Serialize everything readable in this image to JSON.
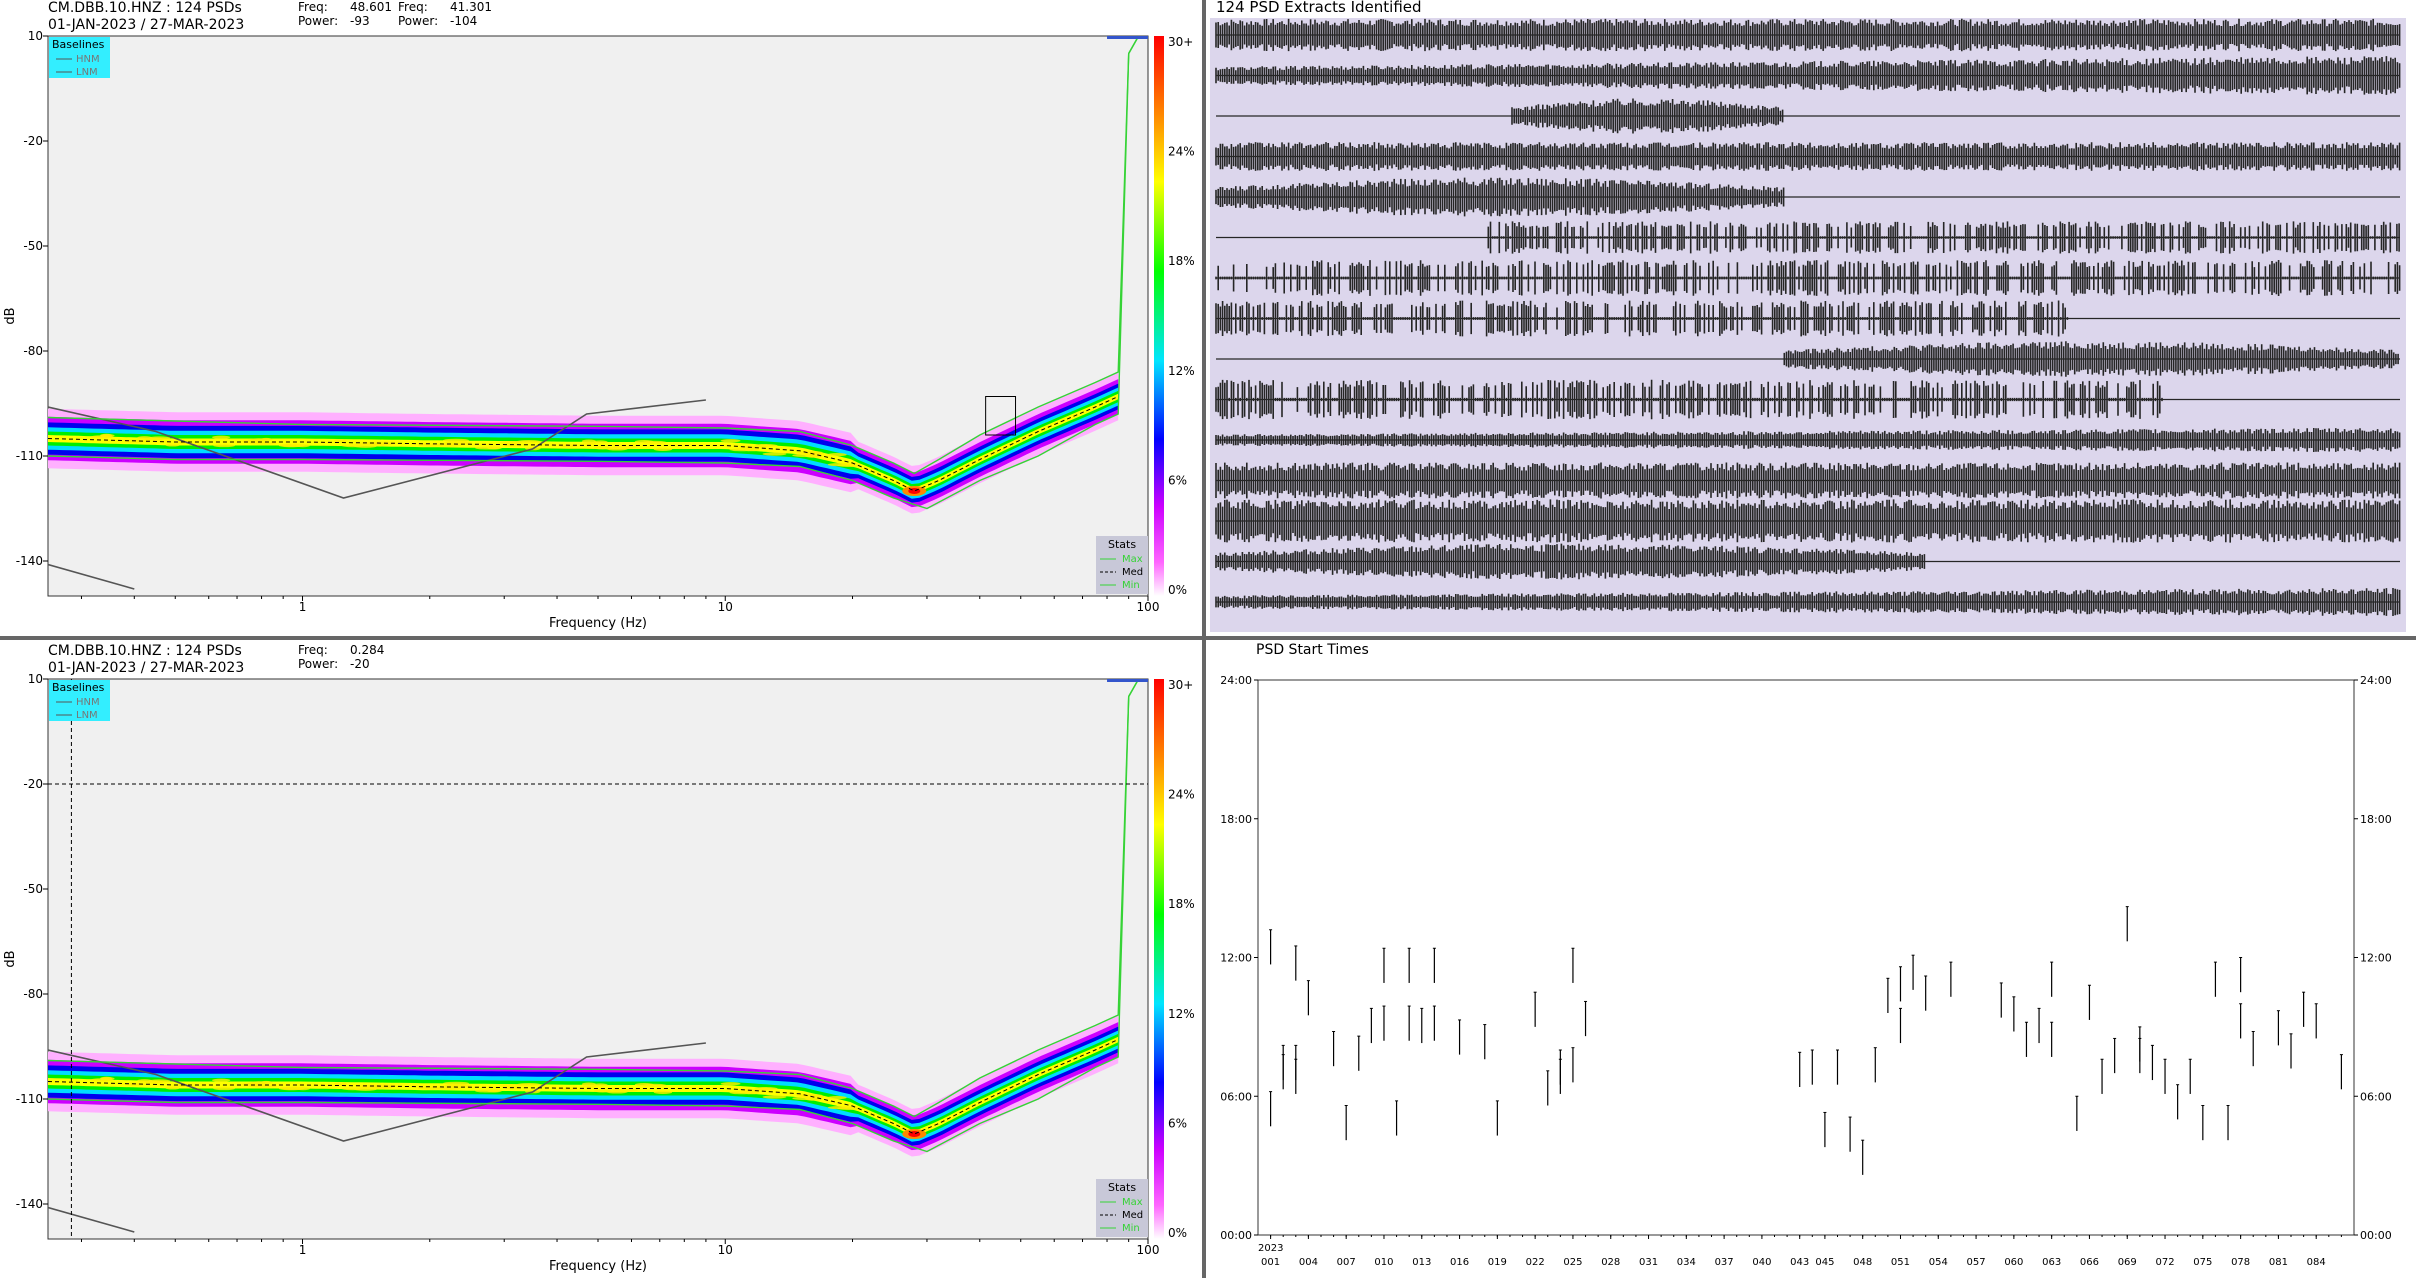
{
  "panels": {
    "top_left": {
      "title_line1": "CM.DBB.10.HNZ : 124 PSDs",
      "title_line2": "01-JAN-2023 / 27-MAR-2023",
      "readout": [
        {
          "freq_label": "Freq:",
          "freq_value": "48.601",
          "power_label": "Power:",
          "power_value": "-93"
        },
        {
          "freq_label": "Freq:",
          "freq_value": "41.301",
          "power_label": "Power:",
          "power_value": "-104"
        }
      ],
      "has_crosshair": false,
      "has_probe_box": true
    },
    "bottom_left": {
      "title_line1": "CM.DBB.10.HNZ : 124 PSDs",
      "title_line2": "01-JAN-2023 / 27-MAR-2023",
      "readout": [
        {
          "freq_label": "Freq:",
          "freq_value": "0.284",
          "power_label": "Power:",
          "power_value": "-20"
        }
      ],
      "has_crosshair": true,
      "crosshair": {
        "freq": 0.284,
        "power": -20
      },
      "has_probe_box": false
    },
    "waveforms": {
      "title": "124 PSD Extracts Identified",
      "traces": [
        {
          "start": 0.0,
          "end": 1.0,
          "amp": 0.45,
          "style": "noise"
        },
        {
          "start": 0.0,
          "end": 1.0,
          "amp": 0.55,
          "style": "noise-fade"
        },
        {
          "start": 0.25,
          "end": 0.48,
          "amp": 0.5,
          "style": "burst"
        },
        {
          "start": 0.0,
          "end": 1.0,
          "amp": 0.4,
          "style": "noise"
        },
        {
          "start": 0.0,
          "end": 0.48,
          "amp": 0.55,
          "style": "burst"
        },
        {
          "start": 0.23,
          "end": 1.0,
          "amp": 0.45,
          "style": "spiky"
        },
        {
          "start": 0.0,
          "end": 1.0,
          "amp": 0.5,
          "style": "spiky"
        },
        {
          "start": 0.0,
          "end": 0.72,
          "amp": 0.5,
          "style": "spiky"
        },
        {
          "start": 0.48,
          "end": 1.0,
          "amp": 0.5,
          "style": "burst"
        },
        {
          "start": 0.0,
          "end": 0.8,
          "amp": 0.55,
          "style": "spiky"
        },
        {
          "start": 0.0,
          "end": 1.0,
          "amp": 0.35,
          "style": "noise-fade"
        },
        {
          "start": 0.0,
          "end": 1.0,
          "amp": 0.5,
          "style": "noise"
        },
        {
          "start": 0.0,
          "end": 1.0,
          "amp": 0.6,
          "style": "noise"
        },
        {
          "start": 0.0,
          "end": 0.6,
          "amp": 0.5,
          "style": "burst"
        },
        {
          "start": 0.0,
          "end": 1.0,
          "amp": 0.4,
          "style": "noise-fade"
        }
      ]
    },
    "start_times": {
      "title": "PSD Start Times"
    }
  },
  "legends": {
    "baselines_title": "Baselines",
    "baselines": [
      "HNM",
      "LNM"
    ],
    "stats_title": "Stats",
    "stats": [
      "Max",
      "Med",
      "Min"
    ]
  },
  "chart_data": [
    {
      "type": "heatmap",
      "id": "psd_pdf_top",
      "xlabel": "Frequency (Hz)",
      "ylabel": "dB",
      "x_scale": "log",
      "xlim": [
        0.25,
        100
      ],
      "ylim": [
        -150,
        10
      ],
      "x_ticks": [
        1,
        10,
        100
      ],
      "x_tick_labels": [
        "1",
        "10",
        "100"
      ],
      "y_ticks": [
        10,
        -20,
        -50,
        -80,
        -110,
        -140
      ],
      "colorbar": {
        "ticks": [
          "30+",
          "24%",
          "18%",
          "12%",
          "6%",
          "0%"
        ],
        "range": [
          0,
          30
        ],
        "unit": "%"
      },
      "mode_curve": [
        [
          0.25,
          -105
        ],
        [
          0.5,
          -106
        ],
        [
          1,
          -106
        ],
        [
          2,
          -106.5
        ],
        [
          5,
          -107
        ],
        [
          10,
          -107
        ],
        [
          15,
          -108.5
        ],
        [
          20,
          -112
        ],
        [
          25,
          -117
        ],
        [
          28,
          -120
        ],
        [
          32,
          -117
        ],
        [
          40,
          -111
        ],
        [
          55,
          -103
        ],
        [
          75,
          -96
        ],
        [
          85,
          -93
        ]
      ],
      "max_curve": [
        [
          0.25,
          -99
        ],
        [
          0.5,
          -100
        ],
        [
          1,
          -101
        ],
        [
          5,
          -101.5
        ],
        [
          10,
          -102
        ],
        [
          15,
          -103
        ],
        [
          20,
          -107
        ],
        [
          25,
          -112
        ],
        [
          28,
          -115
        ],
        [
          32,
          -111
        ],
        [
          40,
          -104
        ],
        [
          55,
          -96
        ],
        [
          75,
          -89
        ],
        [
          85,
          -86
        ],
        [
          90,
          5
        ],
        [
          95,
          10
        ],
        [
          100,
          10
        ]
      ],
      "min_curve": [
        [
          0.25,
          -110
        ],
        [
          0.5,
          -111
        ],
        [
          1,
          -111
        ],
        [
          5,
          -111.5
        ],
        [
          10,
          -112
        ],
        [
          15,
          -113
        ],
        [
          20,
          -117
        ],
        [
          25,
          -122
        ],
        [
          30,
          -125
        ],
        [
          40,
          -117
        ],
        [
          55,
          -110
        ],
        [
          75,
          -101
        ],
        [
          85,
          -98
        ],
        [
          90,
          5
        ],
        [
          95,
          10
        ],
        [
          100,
          10
        ]
      ],
      "nhnm_curve": [
        [
          0.25,
          -96
        ],
        [
          0.45,
          -103
        ],
        [
          1.25,
          -122
        ],
        [
          3.5,
          -108
        ],
        [
          4.7,
          -98
        ],
        [
          9,
          -94
        ]
      ],
      "nlnm_curve": [
        [
          0.25,
          -141
        ],
        [
          0.4,
          -148
        ]
      ]
    },
    {
      "type": "heatmap",
      "id": "psd_pdf_bottom",
      "xlabel": "Frequency (Hz)",
      "ylabel": "dB",
      "x_scale": "log",
      "xlim": [
        0.25,
        100
      ],
      "ylim": [
        -150,
        10
      ],
      "x_ticks": [
        1,
        10,
        100
      ],
      "x_tick_labels": [
        "1",
        "10",
        "100"
      ],
      "y_ticks": [
        10,
        -20,
        -50,
        -80,
        -110,
        -140
      ],
      "colorbar": {
        "ticks": [
          "30+",
          "24%",
          "18%",
          "12%",
          "6%",
          "0%"
        ],
        "range": [
          0,
          30
        ],
        "unit": "%"
      },
      "mode_curve": [
        [
          0.25,
          -105
        ],
        [
          0.5,
          -106
        ],
        [
          1,
          -106
        ],
        [
          2,
          -106.5
        ],
        [
          5,
          -107
        ],
        [
          10,
          -107
        ],
        [
          15,
          -108.5
        ],
        [
          20,
          -112
        ],
        [
          25,
          -117
        ],
        [
          28,
          -120
        ],
        [
          32,
          -117
        ],
        [
          40,
          -111
        ],
        [
          55,
          -103
        ],
        [
          75,
          -96
        ],
        [
          85,
          -93
        ]
      ],
      "max_curve": [
        [
          0.25,
          -99
        ],
        [
          0.5,
          -100
        ],
        [
          1,
          -101
        ],
        [
          5,
          -101.5
        ],
        [
          10,
          -102
        ],
        [
          15,
          -103
        ],
        [
          20,
          -107
        ],
        [
          25,
          -112
        ],
        [
          28,
          -115
        ],
        [
          32,
          -111
        ],
        [
          40,
          -104
        ],
        [
          55,
          -96
        ],
        [
          75,
          -89
        ],
        [
          85,
          -86
        ],
        [
          90,
          5
        ],
        [
          95,
          10
        ],
        [
          100,
          10
        ]
      ],
      "min_curve": [
        [
          0.25,
          -110
        ],
        [
          0.5,
          -111
        ],
        [
          1,
          -111
        ],
        [
          5,
          -111.5
        ],
        [
          10,
          -112
        ],
        [
          15,
          -113
        ],
        [
          20,
          -117
        ],
        [
          25,
          -122
        ],
        [
          30,
          -125
        ],
        [
          40,
          -117
        ],
        [
          55,
          -110
        ],
        [
          75,
          -101
        ],
        [
          85,
          -98
        ],
        [
          90,
          5
        ],
        [
          95,
          10
        ],
        [
          100,
          10
        ]
      ],
      "nhnm_curve": [
        [
          0.25,
          -96
        ],
        [
          0.45,
          -103
        ],
        [
          1.25,
          -122
        ],
        [
          3.5,
          -108
        ],
        [
          4.7,
          -98
        ],
        [
          9,
          -94
        ]
      ],
      "nlnm_curve": [
        [
          0.25,
          -141
        ],
        [
          0.4,
          -148
        ]
      ]
    },
    {
      "type": "scatter",
      "id": "psd_start_times",
      "title": "PSD Start Times",
      "x_year_label": "2023",
      "xlim": [
        0,
        87
      ],
      "ylim": [
        0,
        24
      ],
      "x_ticks": [
        1,
        4,
        7,
        10,
        13,
        16,
        19,
        22,
        25,
        28,
        31,
        34,
        37,
        40,
        43,
        45,
        48,
        51,
        54,
        57,
        60,
        63,
        66,
        69,
        72,
        75,
        78,
        81,
        84
      ],
      "x_tick_labels": [
        "001",
        "004",
        "007",
        "010",
        "013",
        "016",
        "019",
        "022",
        "025",
        "028",
        "031",
        "034",
        "037",
        "040",
        "043",
        "045",
        "048",
        "051",
        "054",
        "057",
        "060",
        "063",
        "066",
        "069",
        "072",
        "075",
        "078",
        "081",
        "084"
      ],
      "y_ticks": [
        0,
        6,
        12,
        18,
        24
      ],
      "y_tick_labels": [
        "00:00",
        "06:00",
        "12:00",
        "18:00",
        "24:00"
      ],
      "segment_length_hours": 1.5,
      "points": [
        [
          1,
          6.2
        ],
        [
          1,
          13.2
        ],
        [
          2,
          7.8
        ],
        [
          2,
          8.2
        ],
        [
          3,
          7.6
        ],
        [
          3,
          8.2
        ],
        [
          3,
          12.5
        ],
        [
          4,
          11.0
        ],
        [
          6,
          8.8
        ],
        [
          7,
          5.6
        ],
        [
          8,
          8.6
        ],
        [
          9,
          9.8
        ],
        [
          10,
          9.9
        ],
        [
          10,
          12.4
        ],
        [
          11,
          5.8
        ],
        [
          12,
          9.9
        ],
        [
          12,
          12.4
        ],
        [
          13,
          9.8
        ],
        [
          14,
          9.9
        ],
        [
          14,
          12.4
        ],
        [
          16,
          9.3
        ],
        [
          18,
          9.1
        ],
        [
          19,
          5.8
        ],
        [
          22,
          10.5
        ],
        [
          23,
          7.1
        ],
        [
          24,
          7.6
        ],
        [
          24,
          8.0
        ],
        [
          25,
          8.1
        ],
        [
          25,
          12.4
        ],
        [
          26,
          10.1
        ],
        [
          43,
          7.9
        ],
        [
          44,
          8.0
        ],
        [
          45,
          5.3
        ],
        [
          46,
          8.0
        ],
        [
          47,
          5.1
        ],
        [
          48,
          4.1
        ],
        [
          49,
          8.1
        ],
        [
          50,
          11.1
        ],
        [
          51,
          11.6
        ],
        [
          51,
          9.8
        ],
        [
          52,
          12.1
        ],
        [
          53,
          11.2
        ],
        [
          55,
          11.8
        ],
        [
          59,
          10.9
        ],
        [
          60,
          10.3
        ],
        [
          61,
          9.2
        ],
        [
          62,
          9.8
        ],
        [
          63,
          11.8
        ],
        [
          63,
          9.2
        ],
        [
          65,
          6.0
        ],
        [
          66,
          10.8
        ],
        [
          67,
          7.6
        ],
        [
          68,
          8.5
        ],
        [
          69,
          14.2
        ],
        [
          70,
          8.5
        ],
        [
          70,
          9.0
        ],
        [
          71,
          8.2
        ],
        [
          72,
          7.6
        ],
        [
          73,
          6.5
        ],
        [
          74,
          7.6
        ],
        [
          75,
          5.6
        ],
        [
          76,
          11.8
        ],
        [
          77,
          5.6
        ],
        [
          78,
          10.0
        ],
        [
          78,
          12.0
        ],
        [
          79,
          8.8
        ],
        [
          81,
          9.7
        ],
        [
          82,
          8.7
        ],
        [
          83,
          10.5
        ],
        [
          84,
          10.0
        ],
        [
          86,
          7.8
        ]
      ]
    }
  ],
  "colors": {
    "plot_bg": "#f0f0f0",
    "waveform_bg": "#dcd6ec",
    "baseline_legend_bg": "#33eeff",
    "stats_legend_bg": "#c8c8d8",
    "noise_model_line": "#555555",
    "min_max_line": "#36d336",
    "mode_line": "#000000",
    "trace_color": "#262626",
    "divider": "#555555"
  }
}
